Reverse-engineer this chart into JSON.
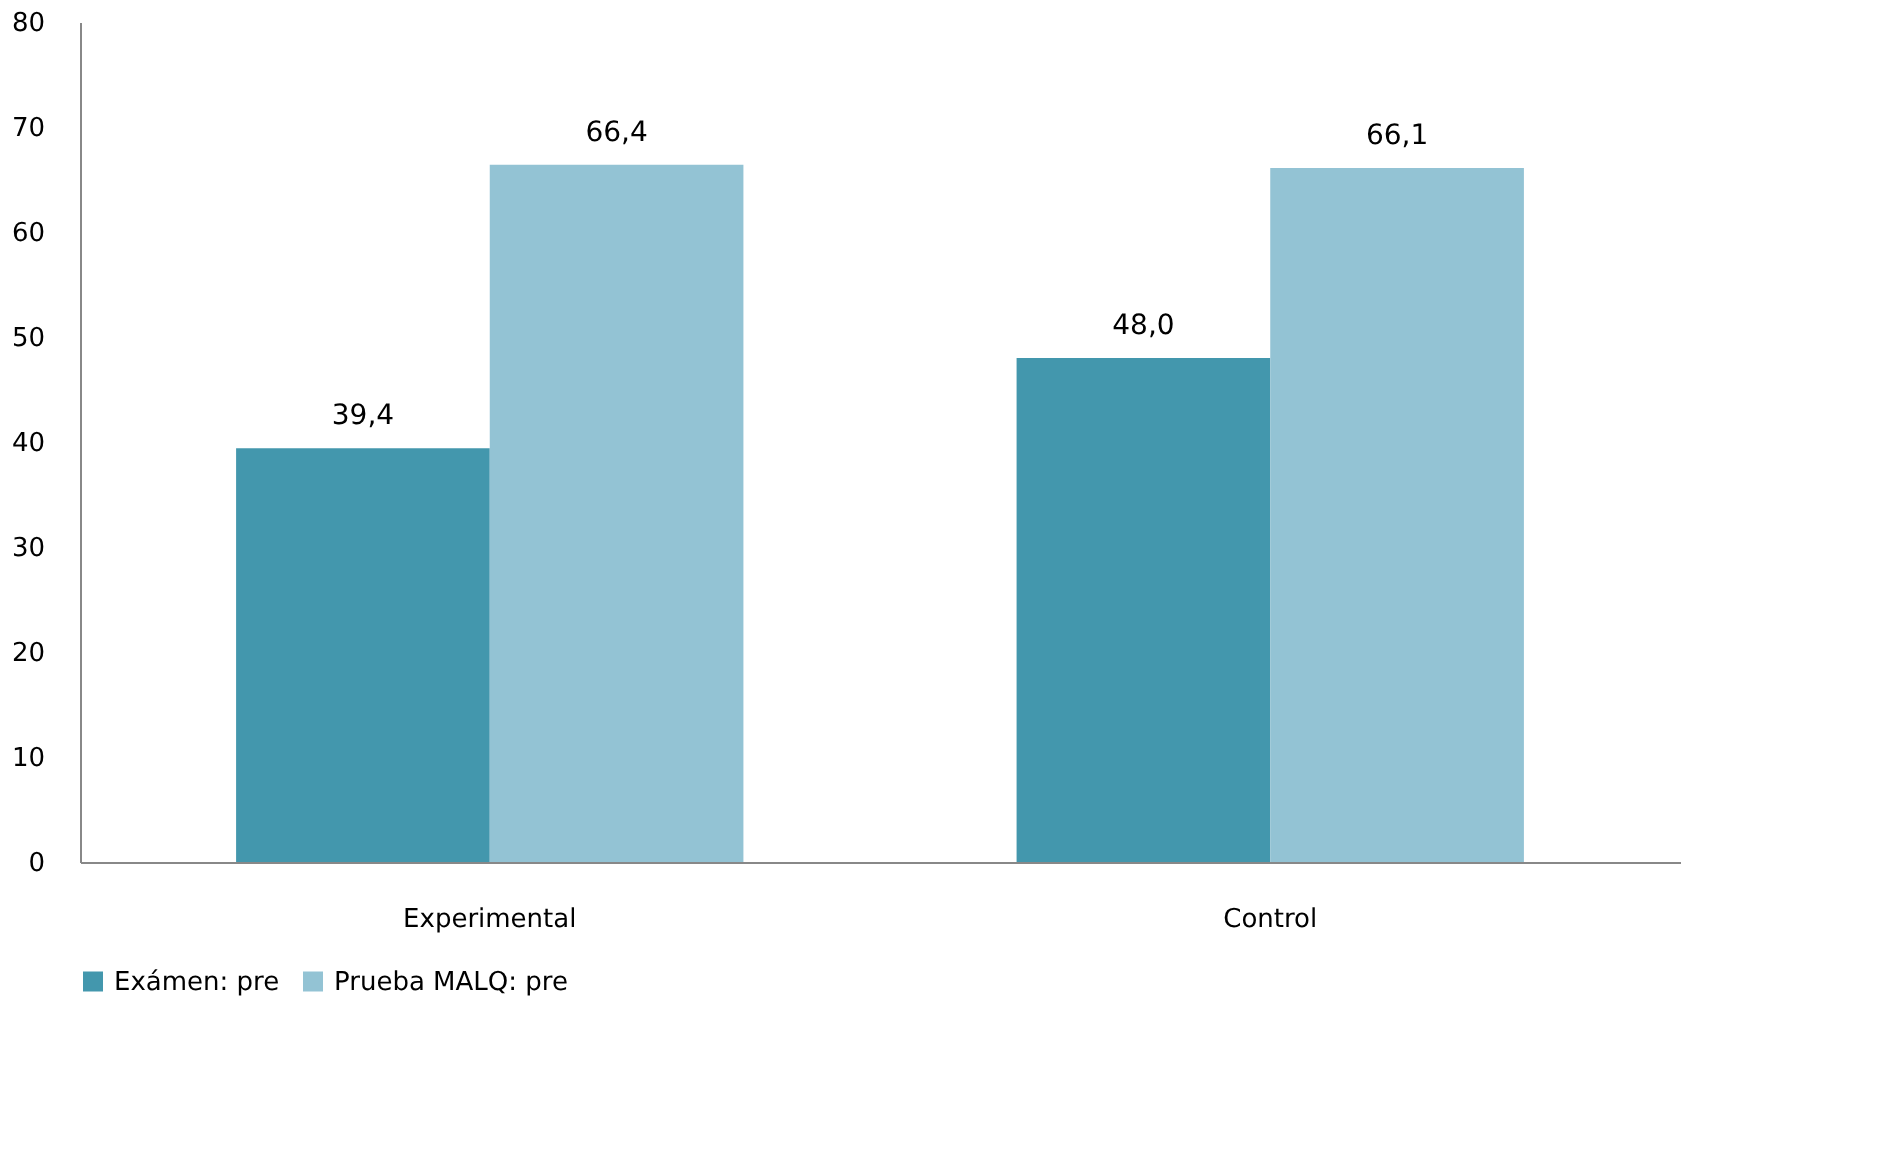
{
  "chart_data": {
    "type": "bar",
    "categories": [
      "Experimental",
      "Control"
    ],
    "series": [
      {
        "name": "Exámen: pre",
        "color": "#4397ad",
        "values": [
          39.4,
          48.0
        ]
      },
      {
        "name": "Prueba MALQ: pre",
        "color": "#93c3d4",
        "values": [
          66.4,
          66.1
        ]
      }
    ],
    "value_labels": [
      [
        "39,4",
        "48,0"
      ],
      [
        "66,4",
        "66,1"
      ]
    ],
    "ylim": [
      0,
      80
    ],
    "yticks": [
      0,
      10,
      20,
      30,
      40,
      50,
      60,
      70,
      80
    ],
    "grid": false,
    "legend": "bottom"
  }
}
